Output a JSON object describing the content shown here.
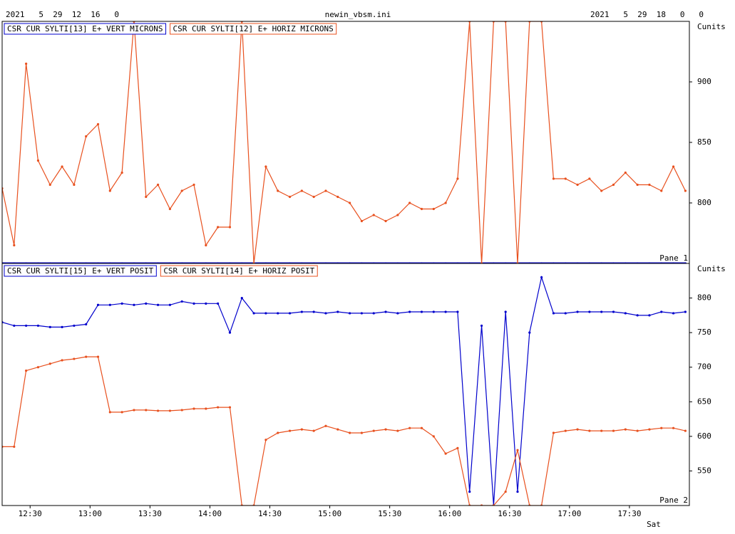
{
  "header": {
    "start": "2021   5  29  12  16   0",
    "file": "newin_vbsm.ini",
    "end": "2021   5  29  18   0   0"
  },
  "chart_data": [
    {
      "type": "line",
      "label": "Pane 1",
      "unit": "Cunits",
      "x": [
        "12:16",
        "12:22",
        "12:28",
        "12:34",
        "12:40",
        "12:46",
        "12:52",
        "12:58",
        "13:04",
        "13:10",
        "13:16",
        "13:22",
        "13:28",
        "13:34",
        "13:40",
        "13:46",
        "13:52",
        "13:58",
        "14:04",
        "14:10",
        "14:16",
        "14:22",
        "14:28",
        "14:34",
        "14:40",
        "14:46",
        "14:52",
        "14:58",
        "15:04",
        "15:10",
        "15:16",
        "15:22",
        "15:28",
        "15:34",
        "15:40",
        "15:46",
        "15:52",
        "15:58",
        "16:04",
        "16:10",
        "16:16",
        "16:22",
        "16:28",
        "16:34",
        "16:40",
        "16:46",
        "16:52",
        "16:58",
        "17:04",
        "17:10",
        "17:16",
        "17:22",
        "17:28",
        "17:34",
        "17:40",
        "17:46",
        "17:52",
        "17:58"
      ],
      "xlim": [
        "12:16",
        "18:00"
      ],
      "ylim": [
        750,
        950
      ],
      "yticks": [
        800,
        850,
        900
      ],
      "series": [
        {
          "name": "CSR CUR SYLTI[13] E+ VERT MICRONS",
          "color": "#0000cc",
          "values": [
            750,
            750,
            750,
            750,
            750,
            750,
            750,
            750,
            750,
            750,
            750,
            750,
            750,
            750,
            750,
            750,
            750,
            750,
            750,
            750,
            750,
            750,
            750,
            750,
            750,
            750,
            750,
            750,
            750,
            750,
            750,
            750,
            750,
            750,
            750,
            750,
            750,
            750,
            750,
            750,
            750,
            750,
            750,
            750,
            750,
            750,
            750,
            750,
            750,
            750,
            750,
            750,
            750,
            750,
            750,
            750,
            750,
            750
          ]
        },
        {
          "name": "CSR CUR SYLTI[12] E+ HORIZ MICRONS",
          "color": "#e8501e",
          "values": [
            812,
            765,
            915,
            835,
            815,
            830,
            815,
            855,
            865,
            810,
            825,
            950,
            805,
            815,
            795,
            810,
            815,
            765,
            780,
            780,
            950,
            750,
            830,
            810,
            805,
            810,
            805,
            810,
            805,
            800,
            785,
            790,
            785,
            790,
            800,
            795,
            795,
            800,
            820,
            950,
            750,
            950,
            950,
            750,
            950,
            950,
            820,
            820,
            815,
            820,
            810,
            815,
            825,
            815,
            815,
            810,
            830,
            810
          ]
        }
      ]
    },
    {
      "type": "line",
      "label": "Pane 2",
      "unit": "Cunits",
      "x_sublabel": "Sat",
      "x": [
        "12:16",
        "12:22",
        "12:28",
        "12:34",
        "12:40",
        "12:46",
        "12:52",
        "12:58",
        "13:04",
        "13:10",
        "13:16",
        "13:22",
        "13:28",
        "13:34",
        "13:40",
        "13:46",
        "13:52",
        "13:58",
        "14:04",
        "14:10",
        "14:16",
        "14:22",
        "14:28",
        "14:34",
        "14:40",
        "14:46",
        "14:52",
        "14:58",
        "15:04",
        "15:10",
        "15:16",
        "15:22",
        "15:28",
        "15:34",
        "15:40",
        "15:46",
        "15:52",
        "15:58",
        "16:04",
        "16:10",
        "16:16",
        "16:22",
        "16:28",
        "16:34",
        "16:40",
        "16:46",
        "16:52",
        "16:58",
        "17:04",
        "17:10",
        "17:16",
        "17:22",
        "17:28",
        "17:34",
        "17:40",
        "17:46",
        "17:52",
        "17:58"
      ],
      "xlim": [
        "12:16",
        "18:00"
      ],
      "xticks": [
        "12:30",
        "13:00",
        "13:30",
        "14:00",
        "14:30",
        "15:00",
        "15:30",
        "16:00",
        "16:30",
        "17:00",
        "17:30"
      ],
      "ylim": [
        500,
        850
      ],
      "yticks": [
        550,
        600,
        650,
        700,
        750,
        800
      ],
      "series": [
        {
          "name": "CSR CUR SYLTI[15] E+ VERT POSIT",
          "color": "#0000cc",
          "values": [
            765,
            760,
            760,
            760,
            758,
            758,
            760,
            762,
            790,
            790,
            792,
            790,
            792,
            790,
            790,
            795,
            792,
            792,
            792,
            750,
            800,
            778,
            778,
            778,
            778,
            780,
            780,
            778,
            780,
            778,
            778,
            778,
            780,
            778,
            780,
            780,
            780,
            780,
            780,
            520,
            760,
            500,
            780,
            520,
            750,
            830,
            778,
            778,
            780,
            780,
            780,
            780,
            778,
            775,
            775,
            780,
            778,
            780
          ]
        },
        {
          "name": "CSR CUR SYLTI[14] E+ HORIZ POSIT",
          "color": "#e8501e",
          "values": [
            585,
            585,
            695,
            700,
            705,
            710,
            712,
            715,
            715,
            635,
            635,
            638,
            638,
            637,
            637,
            638,
            640,
            640,
            642,
            642,
            500,
            500,
            595,
            605,
            608,
            610,
            608,
            615,
            610,
            605,
            605,
            608,
            610,
            608,
            612,
            612,
            600,
            575,
            583,
            500,
            500,
            500,
            520,
            580,
            500,
            500,
            605,
            608,
            610,
            608,
            608,
            608,
            610,
            608,
            610,
            612,
            612,
            608
          ]
        }
      ]
    }
  ]
}
